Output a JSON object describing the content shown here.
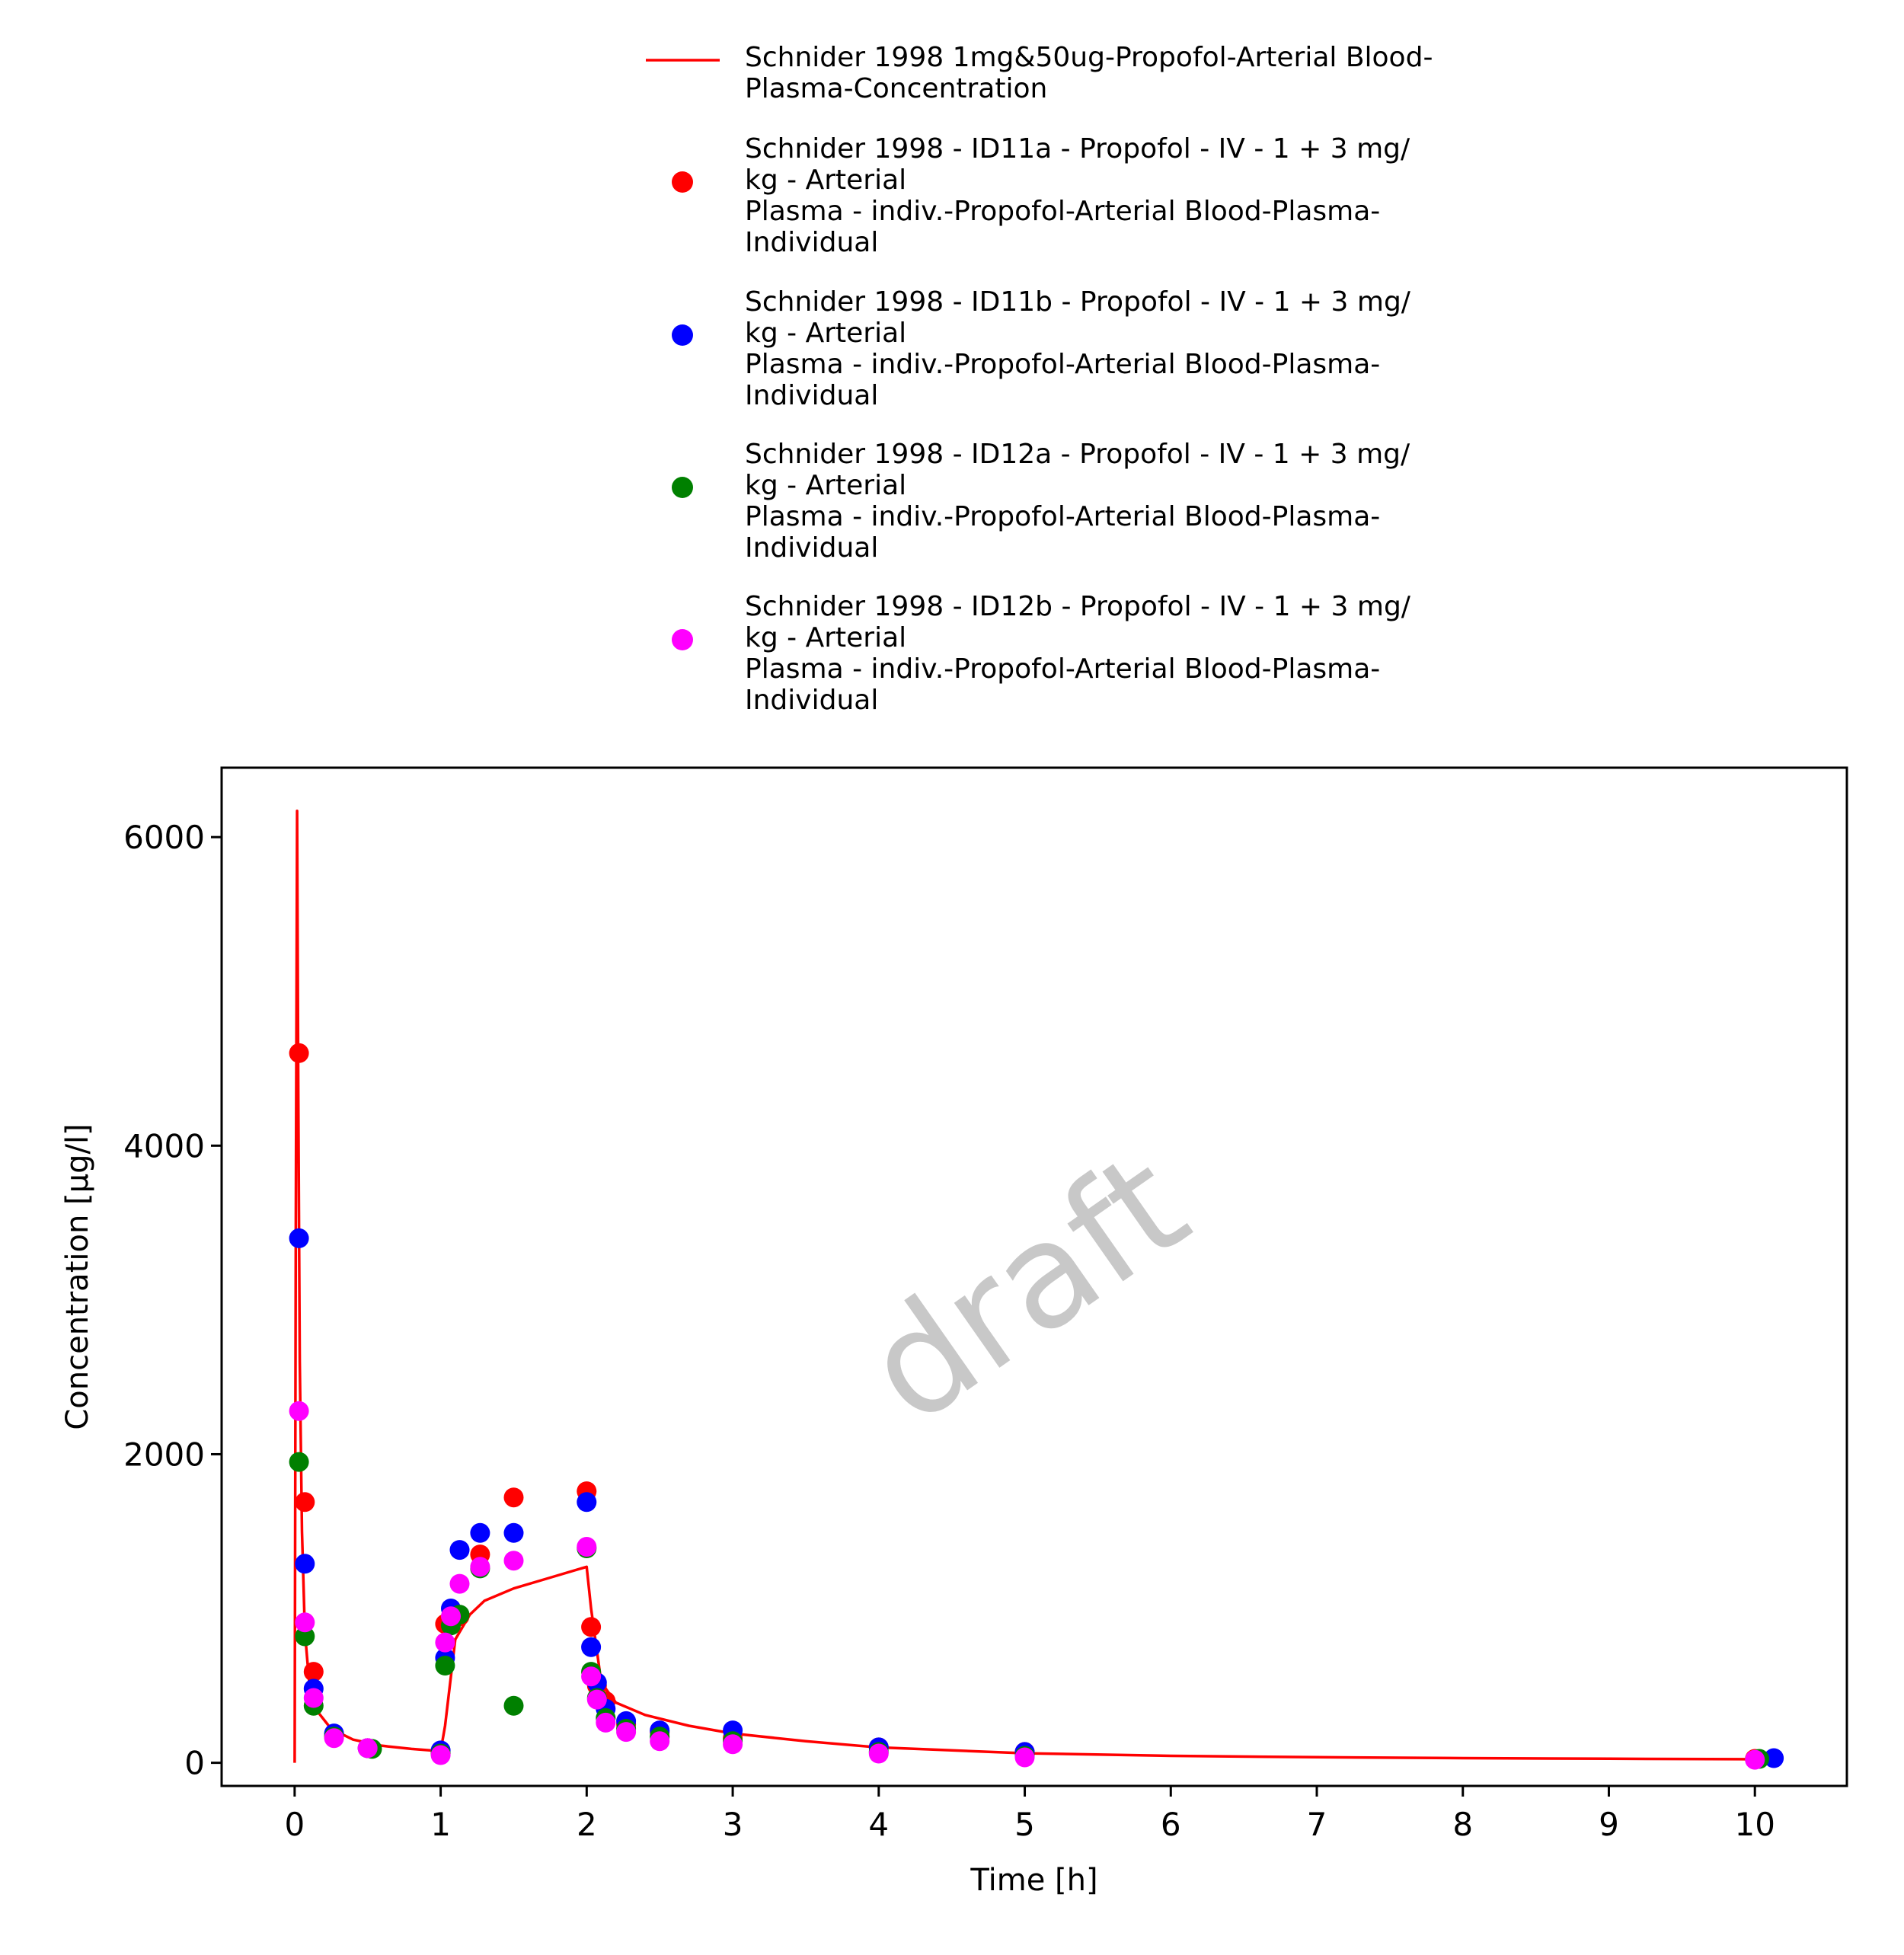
{
  "chart_data": {
    "type": "scatter",
    "xlabel": "Time [h]",
    "ylabel": "Concentration [µg/l]",
    "xlim": [
      -0.5,
      10.63
    ],
    "ylim": [
      -150,
      6450
    ],
    "xticks": [
      0,
      1,
      2,
      3,
      4,
      5,
      6,
      7,
      8,
      9,
      10
    ],
    "yticks": [
      0,
      2000,
      4000,
      6000
    ],
    "grid": false,
    "legend_placement": "top",
    "watermark": "draft",
    "series": [
      {
        "name_lines": [
          "Schnider 1998 1mg&50ug-Propofol-Arterial Blood-",
          "Plasma-Concentration"
        ],
        "kind": "line",
        "color": "#ff0000",
        "x": [
          0,
          0.008,
          0.017,
          0.025,
          0.035,
          0.05,
          0.07,
          0.1,
          0.15,
          0.25,
          0.4,
          0.6,
          0.8,
          1.0,
          1.03,
          1.1,
          1.2,
          1.3,
          1.5,
          1.75,
          2.0,
          2.03,
          2.1,
          2.2,
          2.4,
          2.7,
          3.0,
          3.5,
          4.0,
          5.0,
          6.0,
          7.0,
          8.0,
          9.0,
          10.0
        ],
        "y": [
          0,
          3500,
          6170,
          4300,
          2600,
          1500,
          850,
          520,
          340,
          220,
          150,
          110,
          90,
          75,
          240,
          800,
          960,
          1050,
          1130,
          1200,
          1270,
          1000,
          520,
          390,
          310,
          240,
          190,
          140,
          100,
          62,
          45,
          36,
          30,
          26,
          23
        ]
      },
      {
        "name_lines": [
          "Schnider 1998 - ID11a - Propofol - IV - 1 + 3 mg/",
          "kg - Arterial",
          "Plasma - indiv.-Propofol-Arterial Blood-Plasma-",
          "Individual"
        ],
        "kind": "points",
        "color": "#ff0000",
        "x": [
          0.03,
          0.07,
          0.13,
          0.27,
          0.5,
          1.0,
          1.03,
          1.07,
          1.13,
          1.27,
          1.5,
          2.0,
          2.03,
          2.07,
          2.13,
          2.27,
          2.5,
          3.0,
          4.0,
          5.0,
          10.0
        ],
        "y": [
          4600,
          1690,
          590,
          180,
          95,
          60,
          900,
          900,
          950,
          1350,
          1720,
          1760,
          880,
          500,
          400,
          250,
          200,
          160,
          100,
          70,
          25
        ]
      },
      {
        "name_lines": [
          "Schnider 1998 - ID11b - Propofol - IV - 1 + 3 mg/",
          "kg - Arterial",
          "Plasma - indiv.-Propofol-Arterial Blood-Plasma-",
          "Individual"
        ],
        "kind": "points",
        "color": "#0000ff",
        "x": [
          0.03,
          0.07,
          0.13,
          0.27,
          0.5,
          1.0,
          1.03,
          1.07,
          1.13,
          1.27,
          1.5,
          2.0,
          2.03,
          2.07,
          2.13,
          2.27,
          2.5,
          3.0,
          4.0,
          5.0,
          10.13
        ],
        "y": [
          3400,
          1290,
          480,
          190,
          95,
          80,
          680,
          1000,
          1380,
          1490,
          1490,
          1690,
          750,
          520,
          350,
          270,
          210,
          210,
          100,
          70,
          30
        ]
      },
      {
        "name_lines": [
          "Schnider 1998 - ID12a - Propofol - IV - 1 + 3 mg/",
          "kg - Arterial",
          "Plasma - indiv.-Propofol-Arterial Blood-Plasma-",
          "Individual"
        ],
        "kind": "points",
        "color": "#008000",
        "x": [
          0.03,
          0.07,
          0.13,
          0.27,
          0.53,
          1.0,
          1.03,
          1.07,
          1.13,
          1.27,
          1.5,
          2.0,
          2.03,
          2.07,
          2.13,
          2.27,
          2.5,
          3.0,
          4.0,
          5.0,
          10.03
        ],
        "y": [
          1950,
          820,
          370,
          170,
          90,
          60,
          630,
          890,
          960,
          1260,
          370,
          1390,
          590,
          420,
          290,
          220,
          170,
          140,
          70,
          45,
          25
        ]
      },
      {
        "name_lines": [
          "Schnider 1998 - ID12b - Propofol - IV - 1 + 3 mg/",
          "kg - Arterial",
          "Plasma - indiv.-Propofol-Arterial Blood-Plasma-",
          "Individual"
        ],
        "kind": "points",
        "color": "#ff00ff",
        "x": [
          0.03,
          0.07,
          0.13,
          0.27,
          0.5,
          1.0,
          1.03,
          1.07,
          1.13,
          1.27,
          1.5,
          2.0,
          2.03,
          2.07,
          2.13,
          2.27,
          2.5,
          3.0,
          4.0,
          5.0,
          10.0
        ],
        "y": [
          2280,
          910,
          420,
          160,
          95,
          50,
          780,
          950,
          1160,
          1270,
          1310,
          1400,
          560,
          410,
          260,
          200,
          140,
          120,
          60,
          35,
          20
        ]
      }
    ]
  }
}
